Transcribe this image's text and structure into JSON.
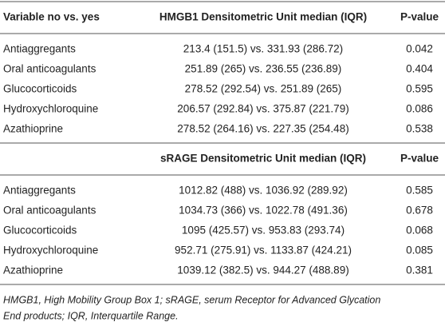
{
  "sections": [
    {
      "variable_header": "Variable no vs. yes",
      "measure_header": "HMGB1 Densitometric Unit median (IQR)",
      "p_header": "P-value",
      "rows": [
        [
          "Antiaggregants",
          "213.4 (151.5) vs. 331.93 (286.72)",
          "0.042"
        ],
        [
          "Oral anticoagulants",
          "251.89 (265) vs. 236.55 (236.89)",
          "0.404"
        ],
        [
          "Glucocorticoids",
          "278.52 (292.54) vs. 251.89 (265)",
          "0.595"
        ],
        [
          "Hydroxychloroquine",
          "206.57 (292.84) vs. 375.87 (221.79)",
          "0.086"
        ],
        [
          "Azathioprine",
          "278.52 (264.16) vs. 227.35 (254.48)",
          "0.538"
        ]
      ]
    },
    {
      "measure_header": "sRAGE Densitometric Unit median (IQR)",
      "p_header": "P-value",
      "rows": [
        [
          "Antiaggregants",
          "1012.82 (488) vs. 1036.92 (289.92)",
          "0.585"
        ],
        [
          "Oral anticoagulants",
          "1034.73 (366) vs. 1022.78 (491.36)",
          "0.678"
        ],
        [
          "Glucocorticoids",
          "1095 (425.57) vs. 953.83 (293.74)",
          "0.068"
        ],
        [
          "Hydroxychloroquine",
          "952.71 (275.91) vs. 1133.87 (424.21)",
          "0.085"
        ],
        [
          "Azathioprine",
          "1039.12 (382.5) vs. 944.27 (488.89)",
          "0.381"
        ]
      ]
    }
  ],
  "footnote": [
    "HMGB1, High Mobility Group Box 1; sRAGE, serum Receptor for Advanced Glycation",
    "End products; IQR, Interquartile Range."
  ]
}
